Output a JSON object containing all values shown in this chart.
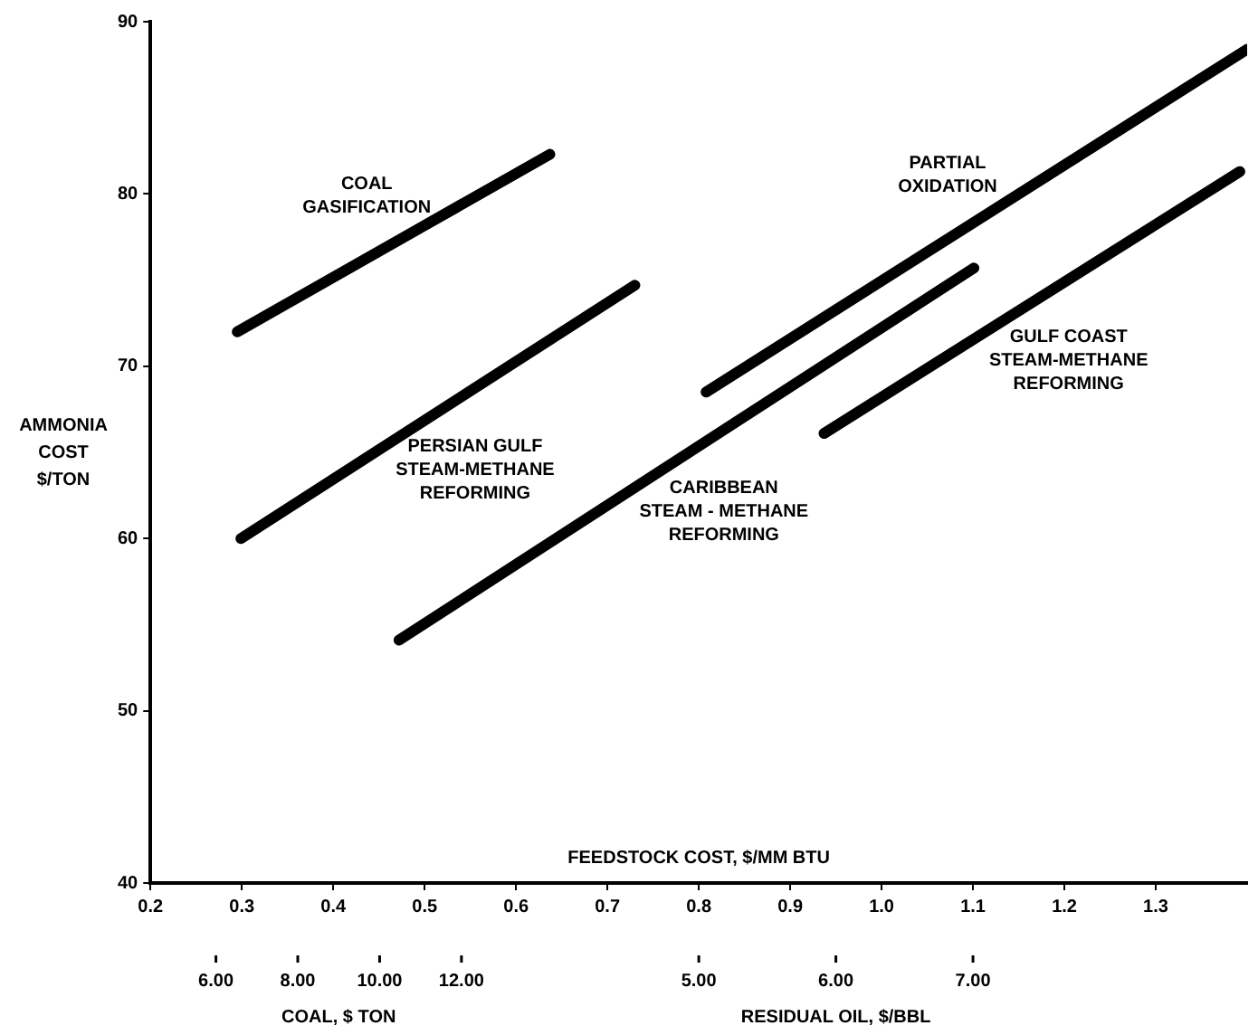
{
  "chart_data": [
    {
      "type": "line",
      "xlabel": "FEEDSTOCK COST, $/MM BTU",
      "ylabel": "AMMONIA\nCOST\n$/TON",
      "x2label": "COAL, $ TON",
      "xlim": [
        0.2,
        1.4
      ],
      "xticks": [
        0.2,
        0.3,
        0.4,
        0.5,
        0.6,
        0.7,
        0.8,
        0.9,
        {
          "value": 1.0,
          "label": "1.0"
        },
        1.1,
        1.2,
        1.3
      ],
      "ylim": [
        40,
        90
      ],
      "yticks": [
        40,
        50,
        60,
        70,
        80,
        90
      ],
      "x2lim": [
        4.4,
        31.2
      ],
      "x2ticks": [
        {
          "value": 6,
          "label": "6.00"
        },
        {
          "value": 8,
          "label": "8.00"
        },
        {
          "value": 10,
          "label": "10.00"
        },
        {
          "value": 12,
          "label": "12.00"
        }
      ],
      "grid": false,
      "legend": false,
      "marker": "none",
      "line_style": "solid",
      "series": [
        {
          "name": "COAL\nGASIFICATION",
          "color": "#000000",
          "x": [
            0.295,
            0.637
          ],
          "values": [
            72.0,
            82.3
          ]
        },
        {
          "name": "PERSIAN GULF\nSTEAM-METHANE\nREFORMING",
          "color": "#000000",
          "x": [
            0.299,
            0.73
          ],
          "values": [
            60.0,
            74.7
          ]
        },
        {
          "name": "CARIBBEAN\nSTEAM - METHANE\nREFORMING",
          "color": "#000000",
          "x": [
            0.472,
            1.101
          ],
          "values": [
            54.1,
            75.7
          ]
        },
        {
          "name": "PARTIAL\nOXIDATION",
          "color": "#000000",
          "x": [
            0.808,
            1.4
          ],
          "values": [
            68.5,
            88.4
          ]
        },
        {
          "name": "GULF COAST\nSTEAM-METHANE\nREFORMING",
          "color": "#000000",
          "x": [
            0.937,
            1.392
          ],
          "values": [
            66.1,
            81.3
          ]
        }
      ]
    },
    {
      "type": "other",
      "xlabel": "RESIDUAL OIL, $/BBL",
      "annotations": [
        "5.00",
        "6.00",
        "7.00"
      ]
    }
  ]
}
